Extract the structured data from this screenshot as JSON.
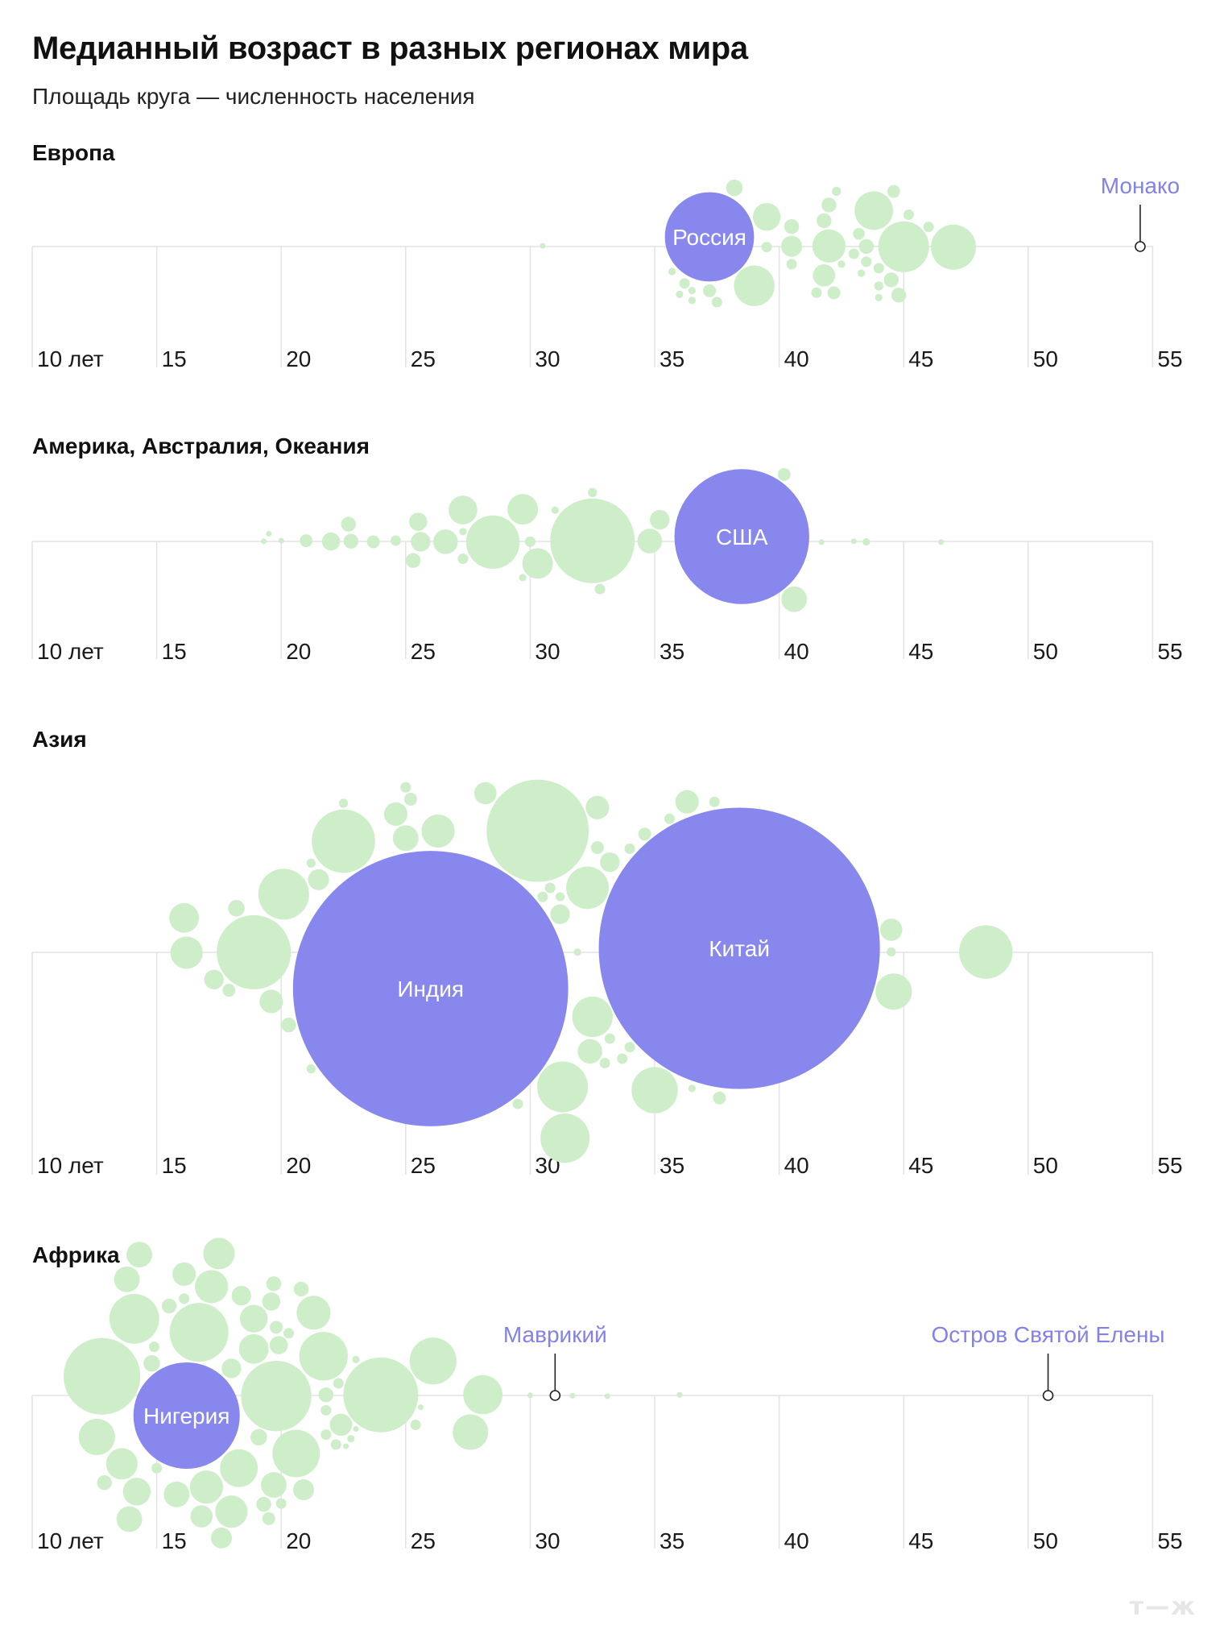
{
  "title": "Медианный возраст в разных регионах мира",
  "subtitle": "Площадь круга — численность населения",
  "colors": {
    "other": "#cdeec9",
    "highlight": "#8787ee",
    "callout": "#8282e8",
    "grid": "#e3e3e3",
    "logo": "#e6e6e6"
  },
  "logo": "т—ж",
  "chart_data": [
    {
      "type": "scatter",
      "region": "Европа",
      "x_axis": {
        "min": 10,
        "max": 55,
        "ticks": [
          10,
          15,
          20,
          25,
          30,
          35,
          40,
          45,
          50,
          55
        ],
        "first_tick_label": "10 лет"
      },
      "highlights": [
        {
          "label": "Россия",
          "age": 37.2,
          "population_mln": 145
        },
        {
          "label": "Монако",
          "age": 54.5,
          "population_mln": 0.04,
          "callout": true
        }
      ],
      "others": [
        {
          "age": 30.5,
          "population_mln": 0.5
        },
        {
          "age": 37.2,
          "population_mln": 3
        },
        {
          "age": 37.5,
          "population_mln": 2
        },
        {
          "age": 38.2,
          "population_mln": 5
        },
        {
          "age": 39.0,
          "population_mln": 30
        },
        {
          "age": 39.5,
          "population_mln": 2
        },
        {
          "age": 39.5,
          "population_mln": 14
        },
        {
          "age": 40.5,
          "population_mln": 2
        },
        {
          "age": 40.5,
          "population_mln": 8
        },
        {
          "age": 40.5,
          "population_mln": 4
        },
        {
          "age": 41.5,
          "population_mln": 2
        },
        {
          "age": 41.8,
          "population_mln": 4
        },
        {
          "age": 42.0,
          "population_mln": 4
        },
        {
          "age": 41.8,
          "population_mln": 9
        },
        {
          "age": 42.5,
          "population_mln": 1
        },
        {
          "age": 42.3,
          "population_mln": 1.5
        },
        {
          "age": 42.2,
          "population_mln": 3
        },
        {
          "age": 42.0,
          "population_mln": 20
        },
        {
          "age": 43.0,
          "population_mln": 2
        },
        {
          "age": 43.2,
          "population_mln": 2.5
        },
        {
          "age": 43.5,
          "population_mln": 4
        },
        {
          "age": 44.5,
          "population_mln": 4
        },
        {
          "age": 44.0,
          "population_mln": 1.5
        },
        {
          "age": 43.3,
          "population_mln": 1
        },
        {
          "age": 43.5,
          "population_mln": 2
        },
        {
          "age": 43.8,
          "population_mln": 27
        },
        {
          "age": 44.0,
          "population_mln": 2
        },
        {
          "age": 44.0,
          "population_mln": 1
        },
        {
          "age": 45.0,
          "population_mln": 47
        },
        {
          "age": 44.6,
          "population_mln": 3
        },
        {
          "age": 44.8,
          "population_mln": 4
        },
        {
          "age": 45.2,
          "population_mln": 2
        },
        {
          "age": 46.0,
          "population_mln": 2
        },
        {
          "age": 47.0,
          "population_mln": 37
        },
        {
          "age": 36.5,
          "population_mln": 1
        },
        {
          "age": 35.7,
          "population_mln": 1
        },
        {
          "age": 36.0,
          "population_mln": 1
        },
        {
          "age": 36.2,
          "population_mln": 2
        },
        {
          "age": 36.5,
          "population_mln": 1
        }
      ]
    },
    {
      "type": "scatter",
      "region": "Америка, Австралия, Океания",
      "x_axis": {
        "min": 10,
        "max": 55,
        "ticks": [
          10,
          15,
          20,
          25,
          30,
          35,
          40,
          45,
          50,
          55
        ],
        "first_tick_label": "10 лет"
      },
      "highlights": [
        {
          "label": "США",
          "age": 38.5,
          "population_mln": 331
        }
      ],
      "others": [
        {
          "age": 19.3,
          "population_mln": 0.1
        },
        {
          "age": 19.5,
          "population_mln": 0.1
        },
        {
          "age": 20.0,
          "population_mln": 0.2
        },
        {
          "age": 21.0,
          "population_mln": 3
        },
        {
          "age": 22.0,
          "population_mln": 6
        },
        {
          "age": 22.8,
          "population_mln": 4
        },
        {
          "age": 22.7,
          "population_mln": 4
        },
        {
          "age": 23.7,
          "population_mln": 3
        },
        {
          "age": 24.6,
          "population_mln": 2
        },
        {
          "age": 25.5,
          "population_mln": 6
        },
        {
          "age": 25.6,
          "population_mln": 7
        },
        {
          "age": 26.6,
          "population_mln": 11
        },
        {
          "age": 27.3,
          "population_mln": 2
        },
        {
          "age": 27.3,
          "population_mln": 1
        },
        {
          "age": 25.3,
          "population_mln": 4
        },
        {
          "age": 27.3,
          "population_mln": 15
        },
        {
          "age": 28.5,
          "population_mln": 52
        },
        {
          "age": 29.7,
          "population_mln": 1
        },
        {
          "age": 30.0,
          "population_mln": 2
        },
        {
          "age": 29.7,
          "population_mln": 17
        },
        {
          "age": 30.3,
          "population_mln": 17
        },
        {
          "age": 31.0,
          "population_mln": 1
        },
        {
          "age": 32.5,
          "population_mln": 130
        },
        {
          "age": 32.5,
          "population_mln": 1.5
        },
        {
          "age": 32.8,
          "population_mln": 2
        },
        {
          "age": 35.2,
          "population_mln": 7
        },
        {
          "age": 34.8,
          "population_mln": 11
        },
        {
          "age": 40.2,
          "population_mln": 3
        },
        {
          "age": 40.6,
          "population_mln": 12
        },
        {
          "age": 41.7,
          "population_mln": 0.1
        },
        {
          "age": 43.0,
          "population_mln": 0.1
        },
        {
          "age": 43.5,
          "population_mln": 1
        },
        {
          "age": 46.5,
          "population_mln": 0.03
        }
      ]
    },
    {
      "type": "scatter",
      "region": "Азия",
      "x_axis": {
        "min": 10,
        "max": 55,
        "ticks": [
          10,
          15,
          20,
          25,
          30,
          35,
          40,
          45,
          50,
          55
        ],
        "first_tick_label": "10 лет"
      },
      "highlights": [
        {
          "label": "Индия",
          "age": 26.0,
          "population_mln": 1380
        },
        {
          "label": "Китай",
          "age": 38.4,
          "population_mln": 1440
        }
      ],
      "others": [
        {
          "age": 22.5,
          "population_mln": 73
        },
        {
          "age": 25.0,
          "population_mln": 12
        },
        {
          "age": 25.0,
          "population_mln": 2
        },
        {
          "age": 26.3,
          "population_mln": 20
        },
        {
          "age": 30.3,
          "population_mln": 190
        },
        {
          "age": 33.2,
          "population_mln": 7
        },
        {
          "age": 32.7,
          "population_mln": 10
        },
        {
          "age": 31.2,
          "population_mln": 7
        },
        {
          "age": 30.5,
          "population_mln": 2
        },
        {
          "age": 34.0,
          "population_mln": 2
        },
        {
          "age": 34.0,
          "population_mln": 2
        },
        {
          "age": 32.5,
          "population_mln": 30
        },
        {
          "age": 33.7,
          "population_mln": 2
        },
        {
          "age": 32.4,
          "population_mln": 11
        },
        {
          "age": 32.7,
          "population_mln": 3
        },
        {
          "age": 33.0,
          "population_mln": 2
        },
        {
          "age": 32.3,
          "population_mln": 33
        },
        {
          "age": 31.3,
          "population_mln": 47
        },
        {
          "age": 30.8,
          "population_mln": 2
        },
        {
          "age": 34.6,
          "population_mln": 3
        },
        {
          "age": 35.0,
          "population_mln": 39
        },
        {
          "age": 36.3,
          "population_mln": 10
        },
        {
          "age": 44.5,
          "population_mln": 9
        },
        {
          "age": 44.5,
          "population_mln": 1.5
        },
        {
          "age": 44.6,
          "population_mln": 24
        },
        {
          "age": 48.3,
          "population_mln": 52
        },
        {
          "age": 16.2,
          "population_mln": 19
        },
        {
          "age": 16.1,
          "population_mln": 16
        },
        {
          "age": 17.3,
          "population_mln": 7
        },
        {
          "age": 18.2,
          "population_mln": 5
        },
        {
          "age": 18.9,
          "population_mln": 100
        },
        {
          "age": 19.6,
          "population_mln": 10
        },
        {
          "age": 20.3,
          "population_mln": 4
        },
        {
          "age": 21.2,
          "population_mln": 1.5
        },
        {
          "age": 21.5,
          "population_mln": 8
        },
        {
          "age": 21.2,
          "population_mln": 1.5
        },
        {
          "age": 22.5,
          "population_mln": 1.5
        },
        {
          "age": 24.6,
          "population_mln": 10
        },
        {
          "age": 25.2,
          "population_mln": 3
        },
        {
          "age": 17.9,
          "population_mln": 3
        },
        {
          "age": 20.1,
          "population_mln": 47
        },
        {
          "age": 28.2,
          "population_mln": 9
        },
        {
          "age": 29.5,
          "population_mln": 2
        },
        {
          "age": 31.9,
          "population_mln": 1
        },
        {
          "age": 31.2,
          "population_mln": 1.5
        },
        {
          "age": 31.4,
          "population_mln": 44
        },
        {
          "age": 33.2,
          "population_mln": 2
        },
        {
          "age": 35.6,
          "population_mln": 2
        },
        {
          "age": 37.4,
          "population_mln": 2
        },
        {
          "age": 37.6,
          "population_mln": 3
        },
        {
          "age": 36.5,
          "population_mln": 1
        }
      ]
    },
    {
      "type": "scatter",
      "region": "Африка",
      "x_axis": {
        "min": 10,
        "max": 55,
        "ticks": [
          10,
          15,
          20,
          25,
          30,
          35,
          40,
          45,
          50,
          55
        ],
        "first_tick_label": "10 лет"
      },
      "highlights": [
        {
          "label": "Нигерия",
          "age": 16.2,
          "population_mln": 206
        },
        {
          "label": "Маврикий",
          "age": 31.0,
          "population_mln": 1.3,
          "callout": true
        },
        {
          "label": "Остров Святой Елены",
          "age": 50.8,
          "population_mln": 0.006,
          "callout": true
        }
      ],
      "others": [
        {
          "age": 12.8,
          "population_mln": 107
        },
        {
          "age": 12.6,
          "population_mln": 24
        },
        {
          "age": 12.9,
          "population_mln": 4
        },
        {
          "age": 13.6,
          "population_mln": 18
        },
        {
          "age": 13.8,
          "population_mln": 12
        },
        {
          "age": 14.1,
          "population_mln": 45
        },
        {
          "age": 13.9,
          "population_mln": 12
        },
        {
          "age": 14.2,
          "population_mln": 14
        },
        {
          "age": 14.3,
          "population_mln": 12
        },
        {
          "age": 14.9,
          "population_mln": 2
        },
        {
          "age": 14.8,
          "population_mln": 5
        },
        {
          "age": 15.0,
          "population_mln": 2
        },
        {
          "age": 15.5,
          "population_mln": 4
        },
        {
          "age": 15.8,
          "population_mln": 12
        },
        {
          "age": 16.1,
          "population_mln": 2
        },
        {
          "age": 16.7,
          "population_mln": 63
        },
        {
          "age": 17.0,
          "population_mln": 20
        },
        {
          "age": 17.2,
          "population_mln": 20
        },
        {
          "age": 17.5,
          "population_mln": 18
        },
        {
          "age": 16.8,
          "population_mln": 9
        },
        {
          "age": 16.1,
          "population_mln": 10
        },
        {
          "age": 17.6,
          "population_mln": 8
        },
        {
          "age": 18.0,
          "population_mln": 7
        },
        {
          "age": 18.4,
          "population_mln": 7
        },
        {
          "age": 18.0,
          "population_mln": 19
        },
        {
          "age": 18.3,
          "population_mln": 26
        },
        {
          "age": 18.9,
          "population_mln": 14
        },
        {
          "age": 18.9,
          "population_mln": 16
        },
        {
          "age": 19.1,
          "population_mln": 5
        },
        {
          "age": 19.3,
          "population_mln": 4
        },
        {
          "age": 19.9,
          "population_mln": 6
        },
        {
          "age": 19.7,
          "population_mln": 4
        },
        {
          "age": 19.5,
          "population_mln": 3
        },
        {
          "age": 19.6,
          "population_mln": 6
        },
        {
          "age": 19.7,
          "population_mln": 12
        },
        {
          "age": 19.8,
          "population_mln": 3
        },
        {
          "age": 19.8,
          "population_mln": 90
        },
        {
          "age": 20.3,
          "population_mln": 2
        },
        {
          "age": 20.0,
          "population_mln": 2
        },
        {
          "age": 20.8,
          "population_mln": 4
        },
        {
          "age": 20.6,
          "population_mln": 41
        },
        {
          "age": 20.9,
          "population_mln": 8
        },
        {
          "age": 21.3,
          "population_mln": 21
        },
        {
          "age": 21.8,
          "population_mln": 2
        },
        {
          "age": 21.8,
          "population_mln": 2
        },
        {
          "age": 21.8,
          "population_mln": 4
        },
        {
          "age": 21.7,
          "population_mln": 43
        },
        {
          "age": 22.3,
          "population_mln": 2
        },
        {
          "age": 22.4,
          "population_mln": 9
        },
        {
          "age": 22.2,
          "population_mln": 2
        },
        {
          "age": 22.6,
          "population_mln": 0.3
        },
        {
          "age": 22.8,
          "population_mln": 1
        },
        {
          "age": 23.0,
          "population_mln": 1
        },
        {
          "age": 23.0,
          "population_mln": 0.5
        },
        {
          "age": 24.0,
          "population_mln": 102
        },
        {
          "age": 25.4,
          "population_mln": 2
        },
        {
          "age": 25.6,
          "population_mln": 0.5
        },
        {
          "age": 26.1,
          "population_mln": 40
        },
        {
          "age": 27.6,
          "population_mln": 23
        },
        {
          "age": 28.1,
          "population_mln": 28
        },
        {
          "age": 30.0,
          "population_mln": 0.3
        },
        {
          "age": 31.7,
          "population_mln": 0.1
        },
        {
          "age": 33.1,
          "population_mln": 0.3
        },
        {
          "age": 36.0,
          "population_mln": 0.6
        }
      ]
    }
  ]
}
